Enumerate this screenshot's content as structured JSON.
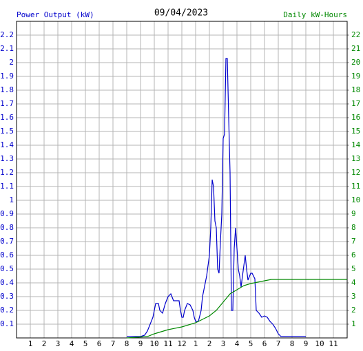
{
  "chart_data": {
    "type": "line",
    "title": "09/04/2023",
    "y_label": "Power Output (kW)",
    "y2_label": "Daily kW-Hours",
    "xlim": [
      0,
      24
    ],
    "xticks": [
      1,
      2,
      3,
      4,
      5,
      6,
      7,
      8,
      9,
      10,
      11,
      12,
      {
        "value": 13,
        "label": "1"
      },
      {
        "value": 14,
        "label": "2"
      },
      {
        "value": 15,
        "label": "3"
      },
      {
        "value": 16,
        "label": "4"
      },
      {
        "value": 17,
        "label": "5"
      },
      {
        "value": 18,
        "label": "6"
      },
      {
        "value": 19,
        "label": "7"
      },
      {
        "value": 20,
        "label": "8"
      },
      {
        "value": 21,
        "label": "9"
      },
      {
        "value": 22,
        "label": "10"
      },
      {
        "value": 23,
        "label": "11"
      }
    ],
    "ylim": [
      0,
      2.3
    ],
    "yticks": [
      0.1,
      0.2,
      0.3,
      0.4,
      0.5,
      0.6,
      0.7,
      0.8,
      0.9,
      1.0,
      1.1,
      1.2,
      1.3,
      1.4,
      1.5,
      1.6,
      1.7,
      1.8,
      1.9,
      2.0,
      2.1,
      2.2
    ],
    "y2lim": [
      0,
      23
    ],
    "y2ticks": [
      1,
      2,
      3,
      4,
      5,
      6,
      7,
      8,
      9,
      10,
      11,
      12,
      13,
      14,
      15,
      16,
      17,
      18,
      19,
      20,
      21,
      22
    ],
    "grid": true,
    "series": [
      {
        "name": "Power Output (kW)",
        "color": "#0000cc",
        "x": [
          8.0,
          9.0,
          9.3,
          9.5,
          9.7,
          9.9,
          10.0,
          10.1,
          10.3,
          10.4,
          10.6,
          10.8,
          11.0,
          11.2,
          11.4,
          11.6,
          11.8,
          11.9,
          12.0,
          12.1,
          12.2,
          12.4,
          12.6,
          12.8,
          12.9,
          13.0,
          13.2,
          13.4,
          13.5,
          13.6,
          13.8,
          14.0,
          14.1,
          14.2,
          14.3,
          14.4,
          14.5,
          14.6,
          14.7,
          14.8,
          14.9,
          15.0,
          15.1,
          15.2,
          15.3,
          15.4,
          15.5,
          15.6,
          15.7,
          15.8,
          15.9,
          16.0,
          16.1,
          16.2,
          16.3,
          16.4,
          16.6,
          16.7,
          16.8,
          17.0,
          17.1,
          17.3,
          17.4,
          17.6,
          17.8,
          18.0,
          18.2,
          18.4,
          18.6,
          18.8,
          19.0,
          19.2,
          20.0,
          21.0
        ],
        "values": [
          0.01,
          0.01,
          0.02,
          0.05,
          0.1,
          0.15,
          0.2,
          0.25,
          0.25,
          0.2,
          0.18,
          0.25,
          0.3,
          0.32,
          0.27,
          0.27,
          0.27,
          0.2,
          0.15,
          0.15,
          0.2,
          0.25,
          0.24,
          0.2,
          0.15,
          0.12,
          0.12,
          0.2,
          0.3,
          0.35,
          0.45,
          0.6,
          0.8,
          1.15,
          1.1,
          0.85,
          0.8,
          0.5,
          0.47,
          0.7,
          0.9,
          1.45,
          1.48,
          2.03,
          2.03,
          1.6,
          1.2,
          0.2,
          0.2,
          0.65,
          0.8,
          0.65,
          0.5,
          0.45,
          0.37,
          0.45,
          0.6,
          0.5,
          0.42,
          0.47,
          0.47,
          0.43,
          0.2,
          0.18,
          0.15,
          0.16,
          0.15,
          0.12,
          0.1,
          0.07,
          0.03,
          0.01,
          0.01,
          0.01
        ]
      },
      {
        "name": "Daily kW-Hours",
        "color": "#008800",
        "axis": "y2",
        "x": [
          8.0,
          9.5,
          10.0,
          11.0,
          12.0,
          13.0,
          14.0,
          14.5,
          15.0,
          15.5,
          16.0,
          16.5,
          17.0,
          17.5,
          18.0,
          18.5,
          19.0,
          20.0,
          24.0
        ],
        "values": [
          0,
          0.1,
          0.3,
          0.6,
          0.8,
          1.1,
          1.6,
          2.0,
          2.6,
          3.2,
          3.5,
          3.8,
          3.95,
          4.05,
          4.15,
          4.25,
          4.25,
          4.25,
          4.25
        ]
      }
    ]
  }
}
